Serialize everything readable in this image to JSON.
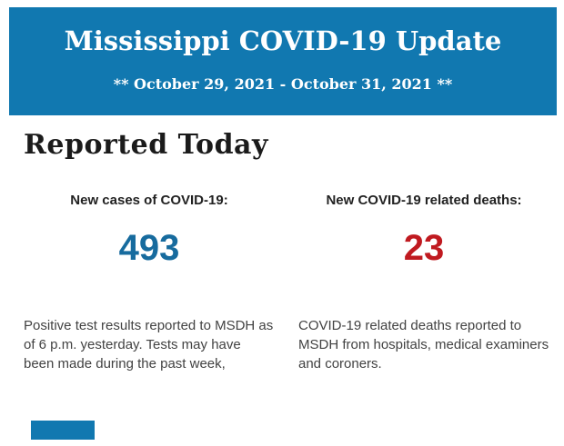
{
  "header": {
    "title": "Mississippi COVID-19 Update",
    "date_range": "** October 29, 2021 - October 31, 2021 **",
    "background_color": "#1178b0",
    "text_color": "#ffffff"
  },
  "section": {
    "heading": "Reported Today"
  },
  "stats": [
    {
      "label": "New cases of COVID-19:",
      "value": "493",
      "value_color": "#176b9e",
      "description": "Positive test results reported to MSDH as of 6 p.m. yesterday. Tests may have been made during the past week,"
    },
    {
      "label": "New COVID-19 related deaths:",
      "value": "23",
      "value_color": "#c01a20",
      "description": "COVID-19 related deaths reported to MSDH from hospitals, medical examiners and coroners."
    }
  ],
  "footer": {
    "next_banner_color": "#1178b0"
  }
}
